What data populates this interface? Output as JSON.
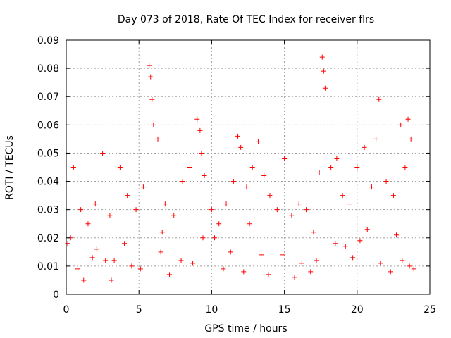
{
  "chart_data": {
    "type": "scatter",
    "title": "Day 073 of 2018, Rate Of TEC Index for receiver flrs",
    "xlabel": "GPS time / hours",
    "ylabel": "ROTI / TECUs",
    "xlim": [
      0,
      25
    ],
    "ylim": [
      0,
      0.09
    ],
    "xticks": [
      0,
      5,
      10,
      15,
      20,
      25
    ],
    "xtick_labels": [
      "0",
      "5",
      "10",
      "15",
      "20",
      "25"
    ],
    "yticks": [
      0,
      0.01,
      0.02,
      0.03,
      0.04,
      0.05,
      0.06,
      0.07,
      0.08,
      0.09
    ],
    "ytick_labels": [
      "0",
      "0.01",
      "0.02",
      "0.03",
      "0.04",
      "0.05",
      "0.06",
      "0.07",
      "0.08",
      "0.09"
    ],
    "grid": true,
    "marker": "plus",
    "color": "#ff0000",
    "series": [
      {
        "name": "ROTI",
        "x": [
          0.1,
          0.5,
          1.0,
          1.5,
          2.0,
          2.5,
          3.0,
          3.3,
          3.7,
          4.2,
          4.8,
          5.3,
          5.7,
          5.8,
          5.9,
          6.0,
          6.3,
          6.8,
          7.4,
          8.0,
          8.5,
          9.0,
          9.2,
          9.3,
          9.5,
          10.0,
          10.5,
          11.0,
          11.5,
          11.8,
          12.0,
          12.4,
          12.8,
          13.2,
          13.6,
          14.0,
          14.5,
          15.0,
          15.5,
          16.0,
          16.5,
          17.0,
          17.4,
          17.6,
          17.7,
          17.8,
          18.2,
          18.6,
          19.0,
          19.5,
          20.0,
          20.5,
          21.0,
          21.3,
          21.5,
          22.0,
          22.5,
          23.0,
          23.3,
          23.5,
          23.7,
          0.8,
          2.7,
          6.5,
          9.4,
          12.2,
          14.9,
          18.5,
          21.6,
          23.6,
          1.2,
          4.5,
          7.9,
          10.8,
          13.9,
          16.2,
          19.7,
          22.3,
          0.3,
          3.1,
          6.6,
          11.3,
          15.7,
          20.2,
          23.1,
          2.1,
          5.1,
          8.7,
          12.6,
          16.8,
          19.2,
          22.7,
          1.8,
          4.0,
          7.1,
          10.2,
          13.4,
          17.2,
          20.7,
          23.9
        ],
        "y": [
          0.018,
          0.045,
          0.03,
          0.025,
          0.032,
          0.05,
          0.028,
          0.012,
          0.045,
          0.035,
          0.03,
          0.038,
          0.081,
          0.077,
          0.069,
          0.06,
          0.055,
          0.032,
          0.028,
          0.04,
          0.045,
          0.062,
          0.058,
          0.05,
          0.042,
          0.03,
          0.025,
          0.032,
          0.04,
          0.056,
          0.052,
          0.038,
          0.045,
          0.054,
          0.042,
          0.035,
          0.03,
          0.048,
          0.028,
          0.032,
          0.03,
          0.022,
          0.043,
          0.084,
          0.079,
          0.073,
          0.045,
          0.048,
          0.035,
          0.032,
          0.045,
          0.052,
          0.038,
          0.055,
          0.069,
          0.04,
          0.035,
          0.06,
          0.045,
          0.062,
          0.055,
          0.009,
          0.012,
          0.015,
          0.02,
          0.008,
          0.014,
          0.018,
          0.011,
          0.01,
          0.005,
          0.01,
          0.012,
          0.009,
          0.007,
          0.011,
          0.013,
          0.008,
          0.02,
          0.005,
          0.022,
          0.015,
          0.006,
          0.019,
          0.012,
          0.016,
          0.009,
          0.011,
          0.025,
          0.008,
          0.017,
          0.021,
          0.013,
          0.018,
          0.007,
          0.02,
          0.014,
          0.012,
          0.023,
          0.009
        ]
      }
    ]
  }
}
